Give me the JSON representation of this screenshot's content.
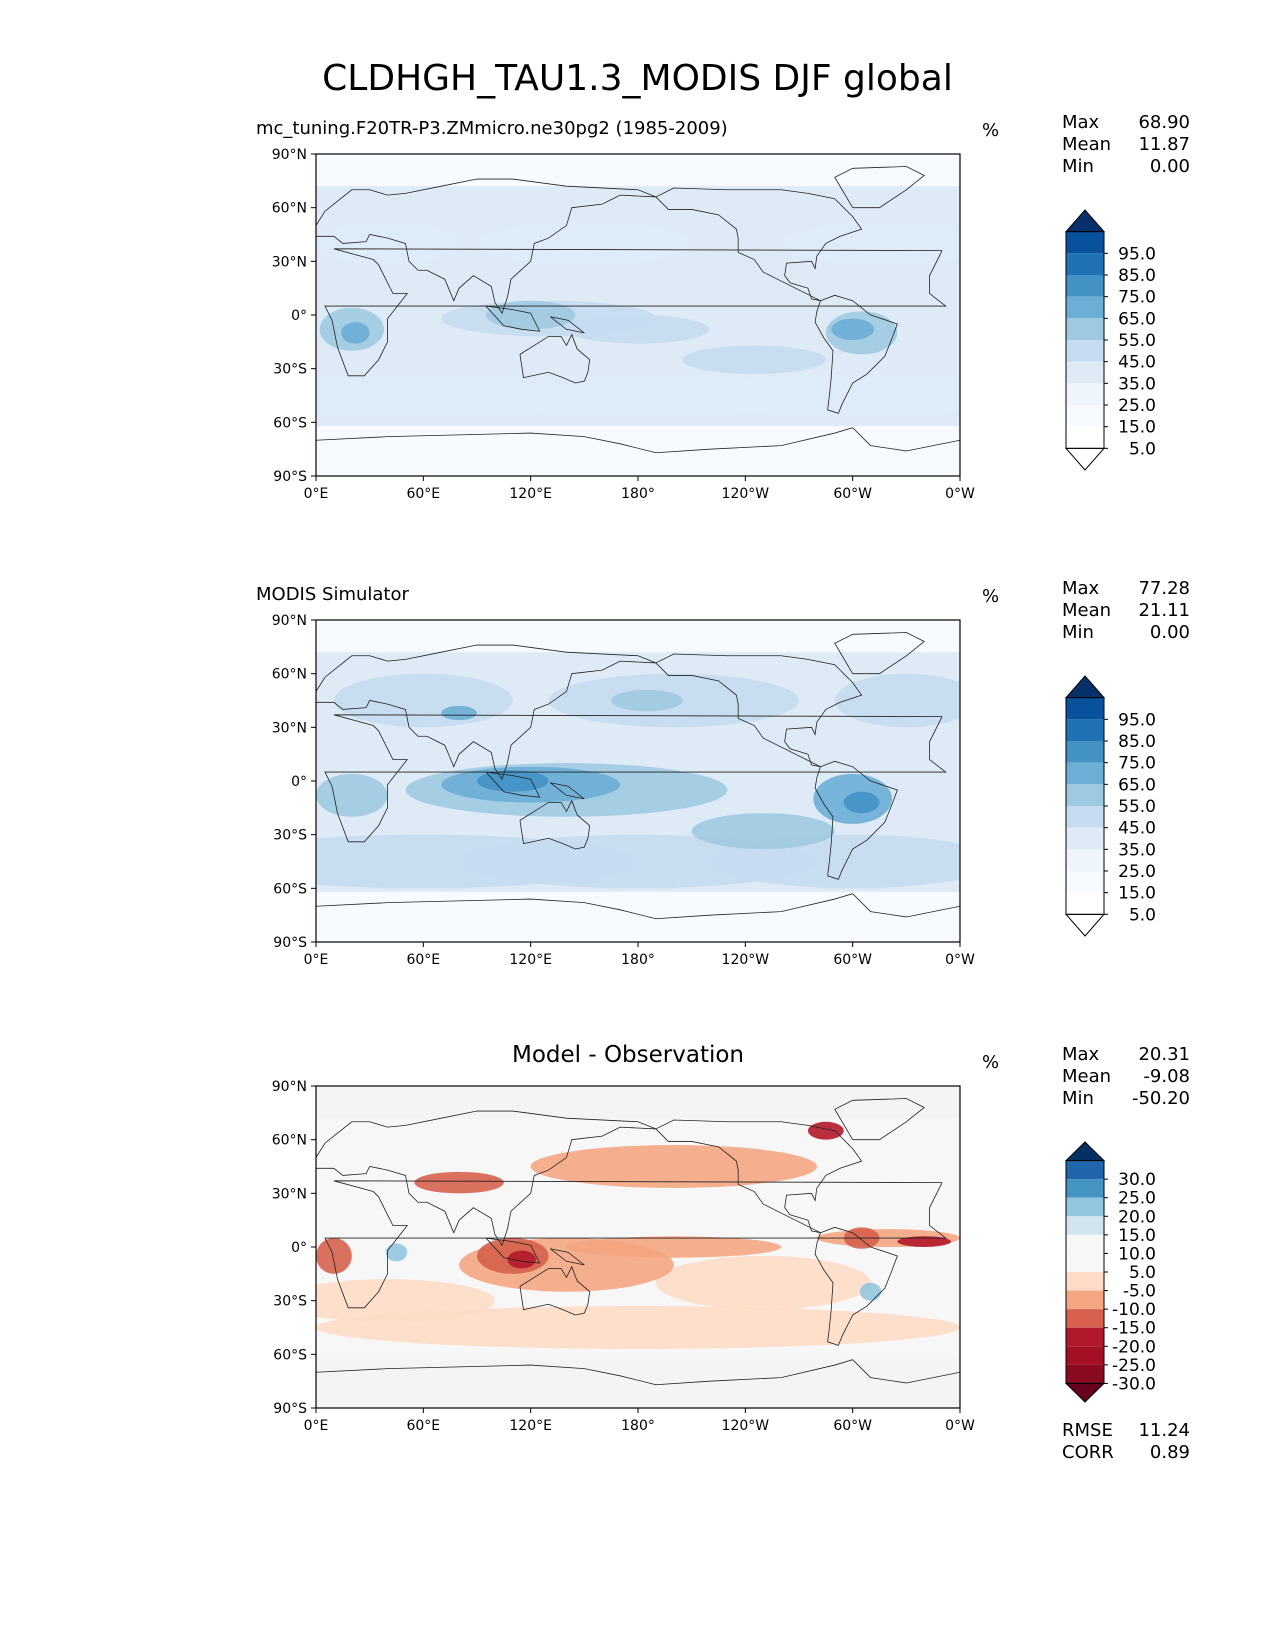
{
  "title": "CLDHGH_TAU1.3_MODIS DJF global",
  "colors": {
    "blues": [
      "#f7fbff",
      "#deebf7",
      "#c6dbef",
      "#9ecae1",
      "#6baed6",
      "#4292c6",
      "#2171b5",
      "#08519c",
      "#08306b"
    ],
    "rdbu": [
      "#67001f",
      "#b2182b",
      "#d6604d",
      "#f4a582",
      "#fddbc7",
      "#f7f7f7",
      "#d1e5f0",
      "#92c5de",
      "#4393c3",
      "#2166ac",
      "#053061"
    ]
  },
  "panels": [
    {
      "title": "mc_tuning.F20TR-P3.ZMmicro.ne30pg2 (1985-2009)",
      "units": "%",
      "stats": {
        "max_label": "Max",
        "max": "68.90",
        "mean_label": "Mean",
        "mean": "11.87",
        "min_label": "Min",
        "min": "0.00"
      },
      "colorbar_ticks": [
        "95.0",
        "85.0",
        "75.0",
        "65.0",
        "55.0",
        "45.0",
        "35.0",
        "25.0",
        "15.0",
        "5.0"
      ]
    },
    {
      "title": "MODIS Simulator",
      "units": "%",
      "stats": {
        "max_label": "Max",
        "max": "77.28",
        "mean_label": "Mean",
        "mean": "21.11",
        "min_label": "Min",
        "min": "0.00"
      },
      "colorbar_ticks": [
        "95.0",
        "85.0",
        "75.0",
        "65.0",
        "55.0",
        "45.0",
        "35.0",
        "25.0",
        "15.0",
        "5.0"
      ]
    },
    {
      "title": "Model - Observation",
      "units": "%",
      "stats": {
        "max_label": "Max",
        "max": "20.31",
        "mean_label": "Mean",
        "mean": "-9.08",
        "min_label": "Min",
        "min": "-50.20"
      },
      "colorbar_ticks": [
        "30.0",
        "25.0",
        "20.0",
        "15.0",
        "10.0",
        "5.0",
        "-5.0",
        "-10.0",
        "-15.0",
        "-20.0",
        "-25.0",
        "-30.0"
      ],
      "rmse_label": "RMSE",
      "rmse": "11.24",
      "corr_label": "CORR",
      "corr": "0.89"
    }
  ],
  "chart_data": [
    {
      "type": "heatmap",
      "title": "mc_tuning.F20TR-P3.ZMmicro.ne30pg2 (1985-2009)",
      "xticks": [
        "0°E",
        "60°E",
        "120°E",
        "180°",
        "120°W",
        "60°W",
        "0°W"
      ],
      "yticks": [
        "90°N",
        "60°N",
        "30°N",
        "0°",
        "30°S",
        "60°S",
        "90°S"
      ],
      "xlim": [
        0,
        360
      ],
      "ylim": [
        -90,
        90
      ],
      "levels": [
        5,
        15,
        25,
        35,
        45,
        55,
        65,
        75,
        85,
        95
      ],
      "zmax": 68.9,
      "zmean": 11.87,
      "zmin": 0.0
    },
    {
      "type": "heatmap",
      "title": "MODIS Simulator",
      "xticks": [
        "0°E",
        "60°E",
        "120°E",
        "180°",
        "120°W",
        "60°W",
        "0°W"
      ],
      "yticks": [
        "90°N",
        "60°N",
        "30°N",
        "0°",
        "30°S",
        "60°S",
        "90°S"
      ],
      "xlim": [
        0,
        360
      ],
      "ylim": [
        -90,
        90
      ],
      "levels": [
        5,
        15,
        25,
        35,
        45,
        55,
        65,
        75,
        85,
        95
      ],
      "zmax": 77.28,
      "zmean": 21.11,
      "zmin": 0.0
    },
    {
      "type": "heatmap",
      "title": "Model - Observation",
      "xticks": [
        "0°E",
        "60°E",
        "120°E",
        "180°",
        "120°W",
        "60°W",
        "0°W"
      ],
      "yticks": [
        "90°N",
        "60°N",
        "30°N",
        "0°",
        "30°S",
        "60°S",
        "90°S"
      ],
      "xlim": [
        0,
        360
      ],
      "ylim": [
        -90,
        90
      ],
      "levels": [
        -30,
        -25,
        -20,
        -15,
        -10,
        -5,
        5,
        10,
        15,
        20,
        25,
        30
      ],
      "zmax": 20.31,
      "zmean": -9.08,
      "zmin": -50.2,
      "rmse": 11.24,
      "corr": 0.89
    }
  ]
}
